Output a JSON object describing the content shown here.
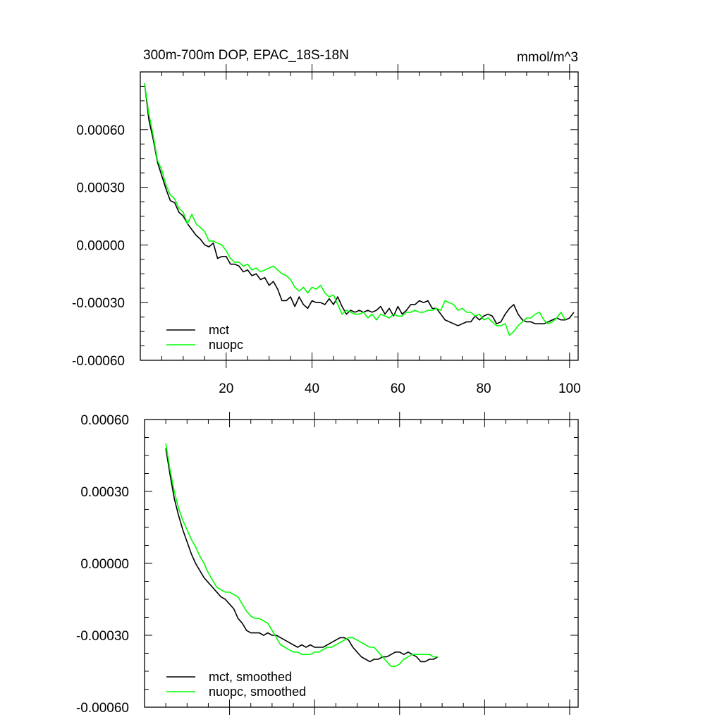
{
  "chart_data": [
    {
      "type": "line",
      "title": "300m-700m DOP, EPAC_18S-18N",
      "units": "mmol/m^3",
      "xlim": [
        0,
        102
      ],
      "ylim": [
        -0.0006,
        0.0009
      ],
      "yticks": [
        -0.0006,
        -0.0003,
        0.0,
        0.0003,
        0.0006
      ],
      "ytick_labels": [
        "-0.00060",
        "-0.00030",
        "0.00000",
        "0.00030",
        "0.00060"
      ],
      "xticks": [
        20,
        40,
        60,
        80,
        100
      ],
      "xtick_labels": [
        "20",
        "40",
        "60",
        "80",
        "100"
      ],
      "legend_position": "bottom-left",
      "x_start": 1,
      "series": [
        {
          "name": "mct",
          "color": "#000000",
          "values": [
            0.00084,
            0.00065,
            0.00055,
            0.00043,
            0.00036,
            0.00029,
            0.00023,
            0.00022,
            0.00017,
            0.00015,
            0.00011,
            8e-05,
            5e-05,
            3e-05,
            0.0,
            -1e-05,
            1e-05,
            -7e-05,
            -6e-05,
            -6e-05,
            -0.0001,
            -0.0001,
            -0.00011,
            -0.00014,
            -0.00013,
            -0.00016,
            -0.00015,
            -0.00018,
            -0.00017,
            -0.00021,
            -0.00019,
            -0.00023,
            -0.00029,
            -0.00029,
            -0.00027,
            -0.00032,
            -0.00027,
            -0.00031,
            -0.00033,
            -0.00029,
            -0.0003,
            -0.0003,
            -0.00031,
            -0.00028,
            -0.00031,
            -0.00027,
            -0.00032,
            -0.00036,
            -0.00034,
            -0.00035,
            -0.00034,
            -0.00035,
            -0.00034,
            -0.00035,
            -0.00034,
            -0.00032,
            -0.00036,
            -0.00033,
            -0.00037,
            -0.00032,
            -0.00036,
            -0.00034,
            -0.00031,
            -0.00031,
            -0.00029,
            -0.0003,
            -0.00029,
            -0.00033,
            -0.00033,
            -0.00036,
            -0.00039,
            -0.0004,
            -0.00041,
            -0.00042,
            -0.00041,
            -0.0004,
            -0.0004,
            -0.00037,
            -0.00039,
            -0.00037,
            -0.00036,
            -0.00037,
            -0.00041,
            -0.0004,
            -0.00036,
            -0.00033,
            -0.00031,
            -0.00036,
            -0.00039,
            -0.0004,
            -0.0004,
            -0.00041,
            -0.00041,
            -0.00041,
            -0.0004,
            -0.00039,
            -0.00038,
            -0.00039,
            -0.00039,
            -0.00038,
            -0.00035
          ]
        },
        {
          "name": "nuopc",
          "color": "#00ff00",
          "values": [
            0.00084,
            0.00068,
            0.00057,
            0.00044,
            0.00039,
            0.00031,
            0.00026,
            0.00024,
            0.00019,
            0.00017,
            0.00011,
            0.00016,
            0.00011,
            9e-05,
            7e-05,
            2e-05,
            2e-05,
            1e-05,
            0.0,
            -3e-05,
            -7e-05,
            -9e-05,
            -9e-05,
            -0.00011,
            -0.0001,
            -0.00013,
            -0.00012,
            -0.00014,
            -0.00013,
            -0.00012,
            -0.00011,
            -0.00013,
            -0.00015,
            -0.00016,
            -0.00018,
            -0.00022,
            -0.00024,
            -0.00022,
            -0.00025,
            -0.00022,
            -0.00023,
            -0.00021,
            -0.00025,
            -0.00027,
            -0.00026,
            -0.00031,
            -0.00036,
            -0.00034,
            -0.00035,
            -0.00036,
            -0.00036,
            -0.00035,
            -0.00038,
            -0.00036,
            -0.00039,
            -0.00036,
            -0.00037,
            -0.00038,
            -0.00036,
            -0.00037,
            -0.00037,
            -0.00035,
            -0.00035,
            -0.00034,
            -0.00035,
            -0.00035,
            -0.00034,
            -0.00034,
            -0.00033,
            -0.00034,
            -0.00029,
            -0.0003,
            -0.00031,
            -0.00034,
            -0.00033,
            -0.00035,
            -0.00035,
            -0.00037,
            -0.00036,
            -0.00039,
            -0.00038,
            -0.0004,
            -0.00042,
            -0.00042,
            -0.00041,
            -0.00047,
            -0.00045,
            -0.00042,
            -0.0004,
            -0.00038,
            -0.00038,
            -0.00036,
            -0.00035,
            -0.00039,
            -0.00041,
            -0.0004,
            -0.00038,
            -0.00035,
            -0.00039
          ]
        }
      ]
    },
    {
      "type": "line",
      "title": "",
      "xlim": [
        0,
        102
      ],
      "ylim": [
        -0.0006,
        0.0006
      ],
      "yticks": [
        -0.0006,
        -0.0003,
        0.0,
        0.0003,
        0.0006
      ],
      "ytick_labels": [
        "-0.00060",
        "-0.00030",
        "0.00000",
        "0.00030",
        "0.00060"
      ],
      "xticks": [
        20,
        40,
        60,
        80,
        100
      ],
      "xtick_labels": [],
      "legend_position": "bottom-left",
      "x_start": 5,
      "series": [
        {
          "name": "mct, smoothed",
          "color": "#000000",
          "values": [
            0.00048,
            0.00037,
            0.00027,
            0.0002,
            0.00014,
            9e-05,
            4e-05,
            0.0,
            -3e-05,
            -6e-05,
            -8e-05,
            -0.0001,
            -0.00012,
            -0.00014,
            -0.00015,
            -0.00017,
            -0.00019,
            -0.00023,
            -0.00025,
            -0.00028,
            -0.00029,
            -0.00029,
            -0.00029,
            -0.0003,
            -0.00029,
            -0.0003,
            -0.0003,
            -0.00031,
            -0.00032,
            -0.00033,
            -0.00034,
            -0.00035,
            -0.00034,
            -0.00035,
            -0.00034,
            -0.00035,
            -0.00035,
            -0.00035,
            -0.00034,
            -0.00033,
            -0.00032,
            -0.00031,
            -0.00031,
            -0.00032,
            -0.00035,
            -0.00037,
            -0.00039,
            -0.0004,
            -0.00041,
            -0.0004,
            -0.0004,
            -0.00039,
            -0.00039,
            -0.00038,
            -0.00037,
            -0.00037,
            -0.00038,
            -0.00037,
            -0.00038,
            -0.00039,
            -0.00041,
            -0.00041,
            -0.0004,
            -0.0004,
            -0.00039
          ]
        },
        {
          "name": "nuopc, smoothed",
          "color": "#00ff00",
          "values": [
            0.0005,
            0.00039,
            0.0003,
            0.00023,
            0.00018,
            0.00014,
            0.0001,
            7e-05,
            3e-05,
            0.0,
            -4e-05,
            -7e-05,
            -0.0001,
            -0.00011,
            -0.00012,
            -0.00012,
            -0.00013,
            -0.00014,
            -0.00017,
            -0.0002,
            -0.00022,
            -0.00023,
            -0.00023,
            -0.00024,
            -0.00025,
            -0.00028,
            -0.00031,
            -0.00034,
            -0.00035,
            -0.00036,
            -0.00037,
            -0.00037,
            -0.00038,
            -0.00038,
            -0.00038,
            -0.00037,
            -0.00037,
            -0.00036,
            -0.00035,
            -0.00035,
            -0.00034,
            -0.00033,
            -0.00032,
            -0.00031,
            -0.00031,
            -0.00032,
            -0.00033,
            -0.00034,
            -0.00035,
            -0.00035,
            -0.00037,
            -0.00039,
            -0.00041,
            -0.00043,
            -0.00043,
            -0.00042,
            -0.0004,
            -0.00039,
            -0.00038,
            -0.00038,
            -0.00038,
            -0.00038,
            -0.00038,
            -0.00039,
            -0.00039
          ]
        }
      ]
    }
  ]
}
